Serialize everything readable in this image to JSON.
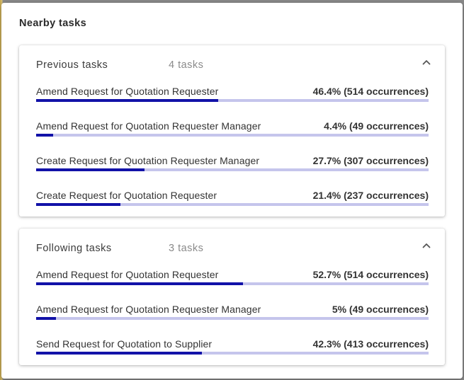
{
  "dialog": {
    "title": "Nearby tasks"
  },
  "colors": {
    "bar_fill": "#1212a8",
    "bar_track": "#c5c5ec"
  },
  "sections": [
    {
      "title": "Previous tasks",
      "count": "4 tasks",
      "icon": "chevron-up-icon",
      "rows": [
        {
          "label": "Amend Request for Quotation Requester",
          "stat": "46.4% (514 occurrences)",
          "percent": 46.4
        },
        {
          "label": "Amend Request for Quotation Requester Manager",
          "stat": "4.4% (49 occurrences)",
          "percent": 4.4
        },
        {
          "label": "Create Request for Quotation Requester Manager",
          "stat": "27.7% (307 occurrences)",
          "percent": 27.7
        },
        {
          "label": "Create Request for Quotation Requester",
          "stat": "21.4% (237 occurrences)",
          "percent": 21.4
        }
      ]
    },
    {
      "title": "Following tasks",
      "count": "3 tasks",
      "icon": "chevron-up-icon",
      "rows": [
        {
          "label": "Amend Request for Quotation Requester",
          "stat": "52.7% (514 occurrences)",
          "percent": 52.7
        },
        {
          "label": "Amend Request for Quotation Requester Manager",
          "stat": "5% (49 occurrences)",
          "percent": 5
        },
        {
          "label": "Send Request for Quotation to Supplier",
          "stat": "42.3% (413 occurrences)",
          "percent": 42.3
        }
      ]
    }
  ]
}
